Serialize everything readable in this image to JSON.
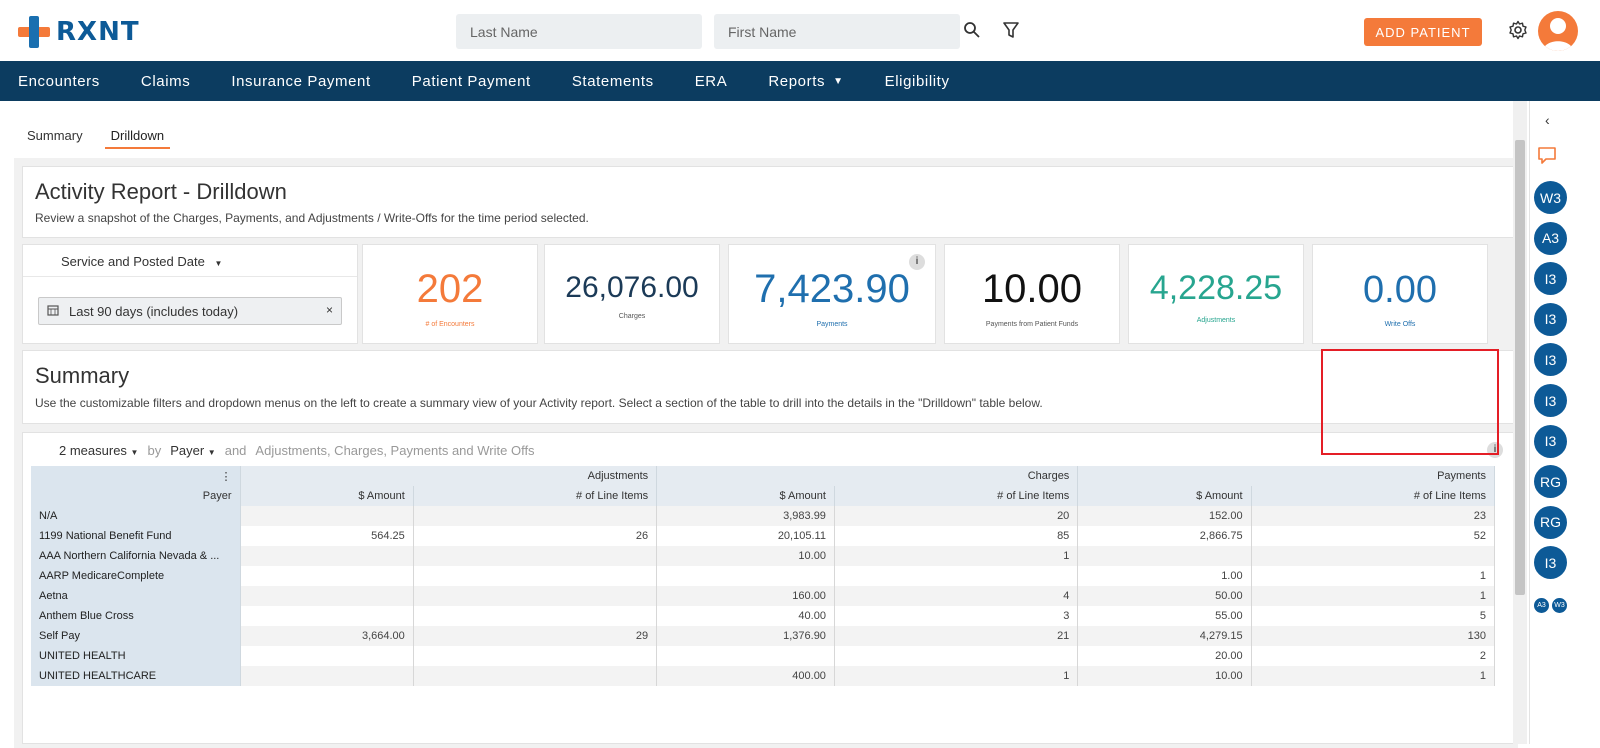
{
  "brand": {
    "name": "RXNT"
  },
  "search": {
    "last_name_placeholder": "Last Name",
    "first_name_placeholder": "First Name"
  },
  "header": {
    "add_patient_label": "ADD PATIENT"
  },
  "nav": {
    "items": [
      "Encounters",
      "Claims",
      "Insurance Payment",
      "Patient Payment",
      "Statements",
      "ERA",
      "Reports",
      "Eligibility"
    ]
  },
  "tabs": {
    "summary": "Summary",
    "drilldown": "Drilldown"
  },
  "report": {
    "title": "Activity Report - Drilldown",
    "description": "Review a snapshot of the Charges, Payments, and Adjustments / Write-Offs for the time period selected."
  },
  "filter": {
    "date_type": "Service and Posted Date",
    "range": "Last 90 days (includes today)",
    "clear_label": "×"
  },
  "kpis": {
    "encounters": {
      "value": "202",
      "label": "# of Encounters",
      "color": "#f47a3a"
    },
    "charges": {
      "value": "26,076.00",
      "label": "Charges",
      "color": "#1b3a57"
    },
    "payments": {
      "value": "7,423.90",
      "label": "Payments",
      "color": "#1f6fae"
    },
    "patient_funds": {
      "value": "10.00",
      "label": "Payments from Patient Funds",
      "color": "#111111"
    },
    "adjustments": {
      "value": "4,228.25",
      "label": "Adjustments",
      "color": "#27a58f"
    },
    "write_offs": {
      "value": "0.00",
      "label": "Write Offs",
      "color": "#1f6fae"
    },
    "info_label": "i"
  },
  "summary": {
    "title": "Summary",
    "description": "Use the customizable filters and dropdown menus on the left to create a summary view of your Activity report. Select a section of the table to drill into the details in the \"Drilldown\" table below."
  },
  "pivot_controls": {
    "measures": "2 measures",
    "by": "by",
    "group": "Payer",
    "and": "and",
    "fields": "Adjustments, Charges, Payments and Write Offs",
    "menu_glyph": "⋮"
  },
  "table": {
    "groups": [
      "Adjustments",
      "Charges",
      "Payments"
    ],
    "row_header": "Payer",
    "sub_headers": [
      "$ Amount",
      "# of Line Items",
      "$ Amount",
      "# of Line Items",
      "$ Amount",
      "# of Line Items"
    ],
    "rows": [
      [
        "N/A",
        "",
        "",
        "3,983.99",
        "20",
        "152.00",
        "23"
      ],
      [
        "1199 National Benefit Fund",
        "564.25",
        "26",
        "20,105.11",
        "85",
        "2,866.75",
        "52"
      ],
      [
        "AAA Northern California Nevada & ...",
        "",
        "",
        "10.00",
        "1",
        "",
        ""
      ],
      [
        "AARP MedicareComplete",
        "",
        "",
        "",
        "",
        "1.00",
        "1"
      ],
      [
        "Aetna",
        "",
        "",
        "160.00",
        "4",
        "50.00",
        "1"
      ],
      [
        "Anthem Blue Cross",
        "",
        "",
        "40.00",
        "3",
        "55.00",
        "5"
      ],
      [
        "Self Pay",
        "3,664.00",
        "29",
        "1,376.90",
        "21",
        "4,279.15",
        "130"
      ],
      [
        "UNITED HEALTH",
        "",
        "",
        "",
        "",
        "20.00",
        "2"
      ],
      [
        "UNITED HEALTHCARE",
        "",
        "",
        "400.00",
        "1",
        "10.00",
        "1"
      ]
    ]
  },
  "rail": {
    "collapse": "‹",
    "badges": [
      "W3",
      "A3",
      "I3",
      "I3",
      "I3",
      "I3",
      "I3",
      "RG",
      "RG",
      "I3"
    ],
    "mini_badges": [
      "A3",
      "W3"
    ]
  }
}
